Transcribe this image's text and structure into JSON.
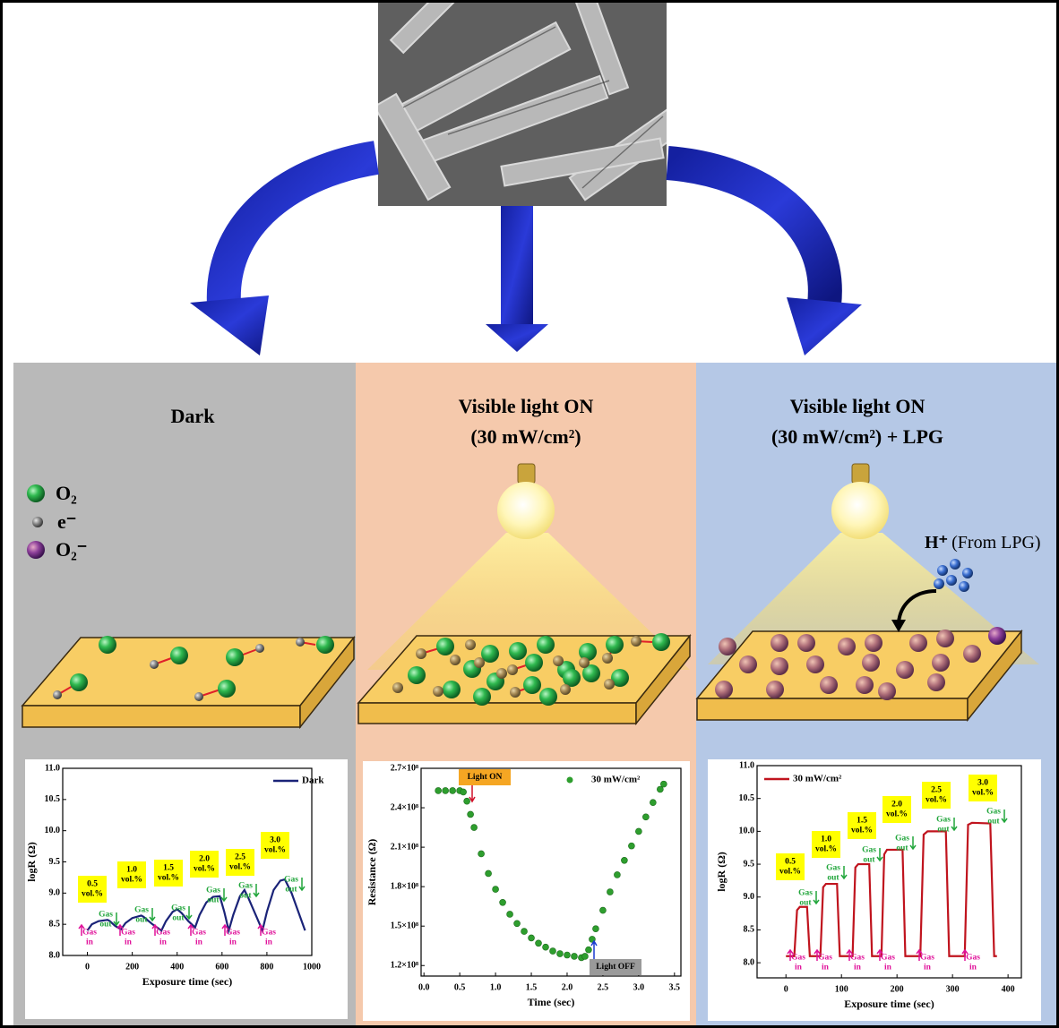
{
  "panels": [
    {
      "title": [
        "Dark"
      ],
      "legend": [
        {
          "label": "O₂"
        },
        {
          "label": "e⁻"
        },
        {
          "label": "O₂⁻"
        }
      ],
      "chart": {
        "type": "line",
        "x_label": "Exposure time (sec)",
        "y_label": "logR (Ω)",
        "xlim": [
          -110,
          1000
        ],
        "ylim": [
          8.0,
          11.0
        ],
        "xticks": [
          0,
          200,
          400,
          600,
          800,
          1000
        ],
        "yticks": [
          {
            "value": 8,
            "label": "8.0"
          },
          8.5,
          {
            "value": 9,
            "label": "9.0"
          },
          9.5,
          {
            "value": 10,
            "label": "10.0"
          },
          10.5,
          {
            "value": 11,
            "label": "11.0"
          }
        ],
        "series": [
          {
            "name": "Dark",
            "color": "#1a2378",
            "x": [
              0,
              20,
              50,
              90,
              100,
              125,
              150,
              170,
              200,
              240,
              250,
              290,
              330,
              350,
              380,
              400,
              420,
              450,
              480,
              500,
              530,
              560,
              590,
              610,
              630,
              650,
              680,
              700,
              720,
              750,
              780,
              800,
              830,
              860,
              880,
              910,
              940,
              970
            ],
            "values": [
              8.4,
              8.5,
              8.55,
              8.57,
              8.55,
              8.47,
              8.42,
              8.52,
              8.6,
              8.64,
              8.62,
              8.5,
              8.4,
              8.55,
              8.7,
              8.74,
              8.68,
              8.55,
              8.45,
              8.65,
              8.85,
              8.94,
              8.95,
              8.7,
              8.4,
              8.65,
              8.95,
              9.05,
              8.9,
              8.65,
              8.4,
              8.7,
              9.05,
              9.2,
              9.22,
              9.0,
              8.7,
              8.4
            ]
          }
        ],
        "annotations": [
          {
            "kind": "concentration",
            "lines": [
              "0.5",
              "vol.%"
            ]
          },
          {
            "kind": "concentration",
            "lines": [
              "1.0",
              "vol.%"
            ]
          },
          {
            "kind": "concentration",
            "lines": [
              "1.5",
              "vol.%"
            ]
          },
          {
            "kind": "concentration",
            "lines": [
              "2.0",
              "vol.%"
            ]
          },
          {
            "kind": "concentration",
            "lines": [
              "2.5",
              "vol.%"
            ]
          },
          {
            "kind": "concentration",
            "lines": [
              "3.0",
              "vol.%"
            ]
          },
          {
            "kind": "gas-out",
            "lines": [
              "Gas",
              "out"
            ]
          },
          {
            "kind": "gas-out",
            "lines": [
              "Gas",
              "out"
            ]
          },
          {
            "kind": "gas-out",
            "lines": [
              "Gas",
              "out"
            ]
          },
          {
            "kind": "gas-out",
            "lines": [
              "Gas",
              "out"
            ]
          },
          {
            "kind": "gas-out",
            "lines": [
              "Gas",
              "out"
            ]
          },
          {
            "kind": "gas-out",
            "lines": [
              "Gas",
              "out"
            ]
          },
          {
            "kind": "gas-in",
            "lines": [
              "Gas",
              "in"
            ]
          },
          {
            "kind": "gas-in",
            "lines": [
              "Gas",
              "in"
            ]
          },
          {
            "kind": "gas-in",
            "lines": [
              "Gas",
              "in"
            ]
          },
          {
            "kind": "gas-in",
            "lines": [
              "Gas",
              "in"
            ]
          },
          {
            "kind": "gas-in",
            "lines": [
              "Gas",
              "in"
            ]
          },
          {
            "kind": "gas-in",
            "lines": [
              "Gas",
              "in"
            ]
          }
        ]
      }
    },
    {
      "title": [
        "Visible light ON",
        "(30 mW/cm²)"
      ],
      "chart": {
        "type": "scatter",
        "x_label": "Time (sec)",
        "y_label": "Resistance (Ω)",
        "xlim": [
          -0.04,
          3.59
        ],
        "ylim": [
          112000000,
          270000000
        ],
        "xticks": [
          {
            "value": 0,
            "label": "0.0"
          },
          0.5,
          {
            "value": 1,
            "label": "1.0"
          },
          1.5,
          {
            "value": 2,
            "label": "2.0"
          },
          2.5,
          {
            "value": 3,
            "label": "3.0"
          },
          3.5
        ],
        "yticks": [
          {
            "value": 120000000,
            "label": "1.2×10⁸"
          },
          {
            "value": 150000000,
            "label": "1.5×10⁸"
          },
          {
            "value": 180000000,
            "label": "1.8×10⁸"
          },
          {
            "value": 210000000,
            "label": "2.1×10⁸"
          },
          {
            "value": 240000000,
            "label": "2.4×10⁸"
          },
          {
            "value": 270000000,
            "label": "2.7×10⁸"
          }
        ],
        "series": [
          {
            "name": "30 mW/cm²",
            "color": "#2e9e2e",
            "x": [
              0.2,
              0.3,
              0.4,
              0.5,
              0.55,
              0.6,
              0.65,
              0.7,
              0.8,
              0.9,
              1.0,
              1.1,
              1.2,
              1.3,
              1.4,
              1.5,
              1.6,
              1.7,
              1.8,
              1.9,
              2.0,
              2.1,
              2.2,
              2.25,
              2.3,
              2.35,
              2.4,
              2.5,
              2.6,
              2.7,
              2.8,
              2.9,
              3.0,
              3.1,
              3.2,
              3.3,
              3.35
            ],
            "values": [
              253000000,
              253000000,
              253000000,
              253000000,
              252000000,
              245000000,
              235000000,
              225000000,
              205000000,
              190000000,
              178000000,
              168000000,
              159000000,
              152000000,
              146000000,
              141000000,
              137000000,
              134000000,
              131000000,
              129000000,
              128000000,
              127000000,
              126000000,
              127000000,
              132000000,
              140000000,
              148000000,
              162000000,
              176000000,
              189000000,
              200000000,
              211000000,
              222000000,
              233000000,
              244000000,
              254000000,
              258000000
            ]
          }
        ],
        "annotations": [
          {
            "kind": "light-on",
            "lines": [
              "Light ON"
            ]
          },
          {
            "kind": "light-off",
            "lines": [
              "Light OFF"
            ]
          }
        ]
      }
    },
    {
      "title": [
        "Visible light ON",
        "(30 mW/cm²) + LPG"
      ],
      "ion": "H⁺",
      "ion_source": "(From LPG)",
      "chart": {
        "type": "line",
        "x_label": "Exposure time (sec)",
        "y_label": "logR (Ω)",
        "xlim": [
          -52,
          424
        ],
        "ylim": [
          7.77,
          11.0
        ],
        "xticks": [
          0,
          100,
          200,
          300,
          400
        ],
        "yticks": [
          {
            "value": 8,
            "label": "8.0"
          },
          8.5,
          {
            "value": 9,
            "label": "9.0"
          },
          9.5,
          {
            "value": 10,
            "label": "10.0"
          },
          10.5,
          {
            "value": 11,
            "label": "11.0"
          }
        ],
        "series": [
          {
            "name": "30 mW/cm²",
            "color": "#c0141e",
            "x": [
              0,
              15,
              20,
              25,
              38,
              43,
              62,
              67,
              72,
              92,
              97,
              120,
              125,
              130,
              150,
              155,
              172,
              177,
              182,
              210,
              215,
              242,
              248,
              255,
              288,
              294,
              322,
              328,
              335,
              368,
              375,
              380
            ],
            "values": [
              8.1,
              8.1,
              8.8,
              8.85,
              8.85,
              8.1,
              8.1,
              9.15,
              9.2,
              9.2,
              8.1,
              8.1,
              9.45,
              9.5,
              9.5,
              8.1,
              8.1,
              9.65,
              9.72,
              9.72,
              8.1,
              8.1,
              9.95,
              10.0,
              10.0,
              8.1,
              8.1,
              10.1,
              10.13,
              10.12,
              8.1,
              8.1
            ]
          }
        ],
        "annotations": [
          {
            "kind": "concentration",
            "lines": [
              "0.5",
              "vol.%"
            ]
          },
          {
            "kind": "concentration",
            "lines": [
              "1.0",
              "vol.%"
            ]
          },
          {
            "kind": "concentration",
            "lines": [
              "1.5",
              "vol.%"
            ]
          },
          {
            "kind": "concentration",
            "lines": [
              "2.0",
              "vol.%"
            ]
          },
          {
            "kind": "concentration",
            "lines": [
              "2.5",
              "vol.%"
            ]
          },
          {
            "kind": "concentration",
            "lines": [
              "3.0",
              "vol.%"
            ]
          },
          {
            "kind": "gas-out",
            "lines": [
              "Gas",
              "out"
            ]
          },
          {
            "kind": "gas-out",
            "lines": [
              "Gas",
              "out"
            ]
          },
          {
            "kind": "gas-out",
            "lines": [
              "Gas",
              "out"
            ]
          },
          {
            "kind": "gas-out",
            "lines": [
              "Gas",
              "out"
            ]
          },
          {
            "kind": "gas-out",
            "lines": [
              "Gas",
              "out"
            ]
          },
          {
            "kind": "gas-out",
            "lines": [
              "Gas",
              "out"
            ]
          },
          {
            "kind": "gas-in",
            "lines": [
              "Gas",
              "in"
            ]
          },
          {
            "kind": "gas-in",
            "lines": [
              "Gas",
              "in"
            ]
          },
          {
            "kind": "gas-in",
            "lines": [
              "Gas",
              "in"
            ]
          },
          {
            "kind": "gas-in",
            "lines": [
              "Gas",
              "in"
            ]
          },
          {
            "kind": "gas-in",
            "lines": [
              "Gas",
              "in"
            ]
          },
          {
            "kind": "gas-in",
            "lines": [
              "Gas",
              "in"
            ]
          }
        ]
      }
    }
  ]
}
